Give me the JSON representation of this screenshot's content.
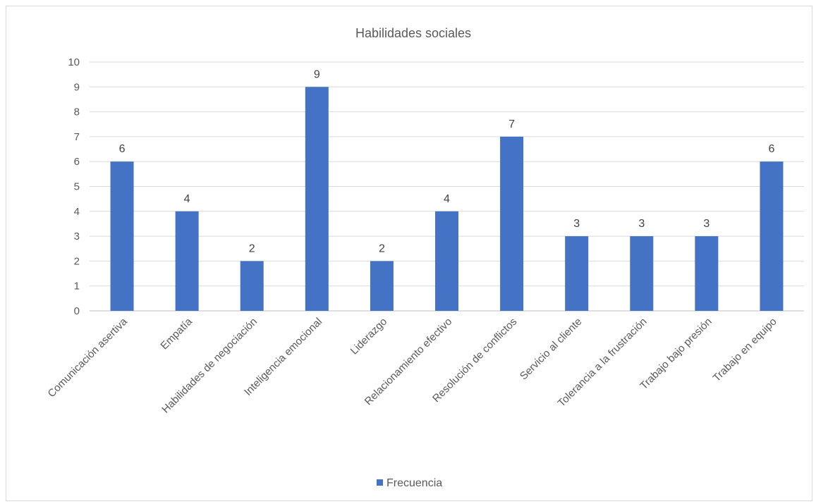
{
  "chart_data": {
    "type": "bar",
    "title": "Habilidades sociales",
    "categories": [
      "Comunicación asertiva",
      "Empatía",
      "Habilidades de negociación",
      "Inteligencia emocional",
      "Liderazgo",
      "Relacionamiento efectivo",
      "Resolución de conflictos",
      "Servicio al cliente",
      "Tolerancia a la frustración",
      "Trabajo bajo presión",
      "Trabajo en equipo"
    ],
    "series": [
      {
        "name": "Frecuencia",
        "values": [
          6,
          4,
          2,
          9,
          2,
          4,
          7,
          3,
          3,
          3,
          6
        ]
      }
    ],
    "ylim": [
      0,
      10
    ],
    "yticks": [
      0,
      1,
      2,
      3,
      4,
      5,
      6,
      7,
      8,
      9,
      10
    ],
    "grid": true,
    "legend_position": "bottom",
    "data_labels": true,
    "bar_color": "#4472c4"
  }
}
